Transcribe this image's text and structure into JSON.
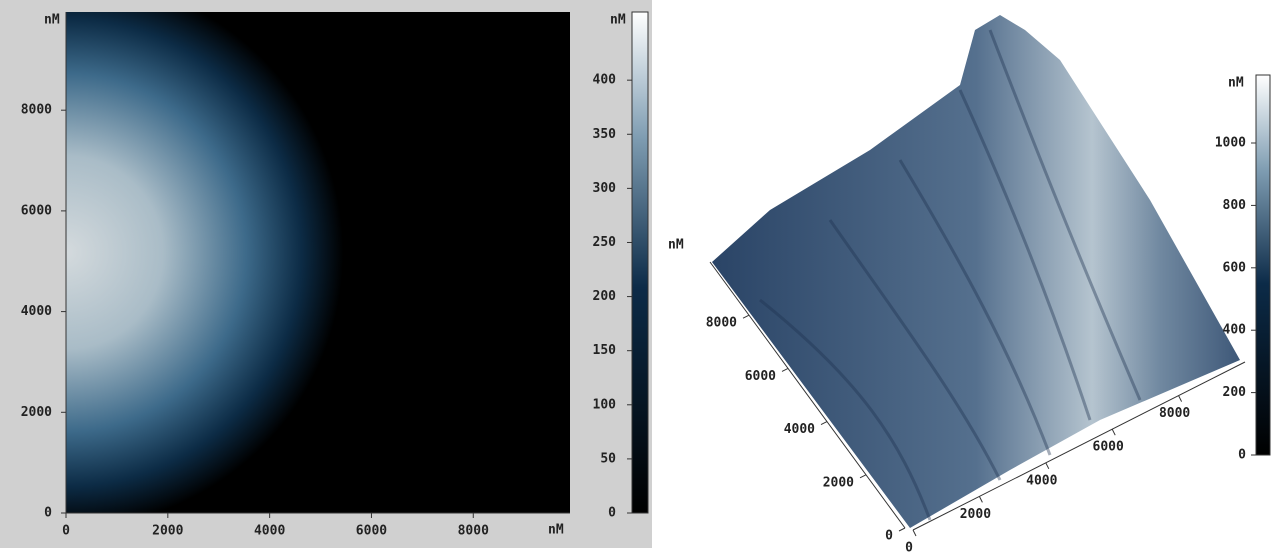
{
  "chart_data": [
    {
      "type": "heatmap",
      "x_label": "nM",
      "y_label": "nM",
      "xlim": [
        0,
        9900
      ],
      "ylim": [
        0,
        9950
      ],
      "xticks": [
        0,
        2000,
        4000,
        6000,
        8000
      ],
      "yticks": [
        0,
        2000,
        4000,
        6000,
        8000
      ],
      "colorbar": {
        "label": "nM",
        "lim": [
          0,
          463
        ],
        "ticks": [
          0,
          50,
          100,
          150,
          200,
          250,
          300,
          350,
          400
        ]
      }
    },
    {
      "type": "surface",
      "y_label": "nM",
      "xlim": [
        0,
        10000
      ],
      "ylim": [
        0,
        10000
      ],
      "xticks": [
        0,
        2000,
        4000,
        6000,
        8000
      ],
      "yticks": [
        0,
        2000,
        4000,
        6000,
        8000
      ],
      "colorbar": {
        "label": "nM",
        "lim": [
          0,
          1218
        ],
        "ticks": [
          0,
          200,
          400,
          600,
          800,
          1000
        ]
      }
    }
  ]
}
